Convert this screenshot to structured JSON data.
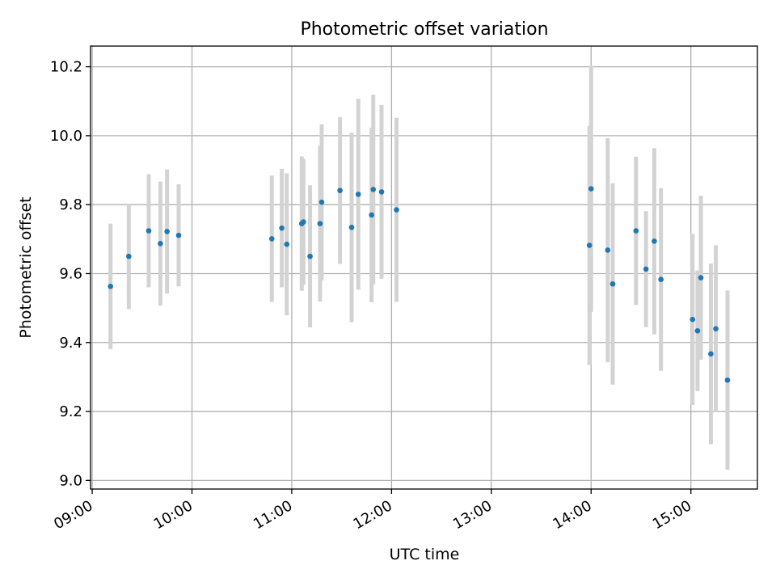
{
  "chart_data": {
    "type": "scatter",
    "title": "Photometric offset variation",
    "xlabel": "UTC time",
    "ylabel": "Photometric offset",
    "grid": true,
    "xlim": [
      "08:59",
      "15:40"
    ],
    "ylim": [
      8.975,
      10.26
    ],
    "x_ticks": [
      "09:00",
      "10:00",
      "11:00",
      "12:00",
      "13:00",
      "14:00",
      "15:00"
    ],
    "y_ticks": [
      "9.0",
      "9.2",
      "9.4",
      "9.6",
      "9.8",
      "10.0",
      "10.2"
    ],
    "marker_color": "#1f77b4",
    "errorbar_color": "#d3d3d3",
    "points": [
      {
        "x": "09:11",
        "y": 9.563,
        "err": 0.182
      },
      {
        "x": "09:22",
        "y": 9.65,
        "err": 0.153
      },
      {
        "x": "09:34",
        "y": 9.724,
        "err": 0.164
      },
      {
        "x": "09:41",
        "y": 9.687,
        "err": 0.18
      },
      {
        "x": "09:45",
        "y": 9.722,
        "err": 0.18
      },
      {
        "x": "09:52",
        "y": 9.711,
        "err": 0.148
      },
      {
        "x": "10:48",
        "y": 9.701,
        "err": 0.183
      },
      {
        "x": "10:54",
        "y": 9.732,
        "err": 0.172
      },
      {
        "x": "10:57",
        "y": 9.685,
        "err": 0.206
      },
      {
        "x": "11:06",
        "y": 9.745,
        "err": 0.195
      },
      {
        "x": "11:07",
        "y": 9.75,
        "err": 0.183
      },
      {
        "x": "11:11",
        "y": 9.65,
        "err": 0.206
      },
      {
        "x": "11:17",
        "y": 9.745,
        "err": 0.226
      },
      {
        "x": "11:18",
        "y": 9.807,
        "err": 0.226
      },
      {
        "x": "11:29",
        "y": 9.841,
        "err": 0.213
      },
      {
        "x": "11:36",
        "y": 9.734,
        "err": 0.275
      },
      {
        "x": "11:40",
        "y": 9.83,
        "err": 0.277
      },
      {
        "x": "11:48",
        "y": 9.77,
        "err": 0.253
      },
      {
        "x": "11:49",
        "y": 9.844,
        "err": 0.275
      },
      {
        "x": "11:54",
        "y": 9.837,
        "err": 0.252
      },
      {
        "x": "12:03",
        "y": 9.785,
        "err": 0.267
      },
      {
        "x": "13:59",
        "y": 9.682,
        "err": 0.347
      },
      {
        "x": "14:00",
        "y": 9.846,
        "err": 0.357
      },
      {
        "x": "14:10",
        "y": 9.668,
        "err": 0.325
      },
      {
        "x": "14:13",
        "y": 9.57,
        "err": 0.292
      },
      {
        "x": "14:27",
        "y": 9.724,
        "err": 0.215
      },
      {
        "x": "14:33",
        "y": 9.613,
        "err": 0.168
      },
      {
        "x": "14:38",
        "y": 9.694,
        "err": 0.27
      },
      {
        "x": "14:42",
        "y": 9.583,
        "err": 0.265
      },
      {
        "x": "15:01",
        "y": 9.467,
        "err": 0.248
      },
      {
        "x": "15:04",
        "y": 9.434,
        "err": 0.175
      },
      {
        "x": "15:06",
        "y": 9.588,
        "err": 0.238
      },
      {
        "x": "15:12",
        "y": 9.367,
        "err": 0.262
      },
      {
        "x": "15:15",
        "y": 9.44,
        "err": 0.242
      },
      {
        "x": "15:22",
        "y": 9.291,
        "err": 0.26
      }
    ]
  }
}
